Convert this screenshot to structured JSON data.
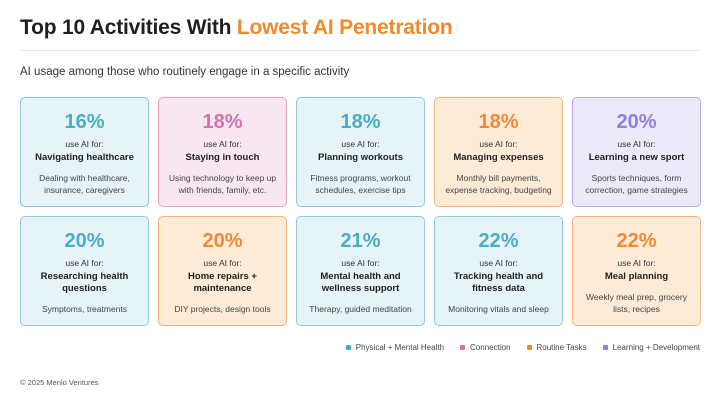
{
  "title": {
    "prefix": "Top 10 Activities With ",
    "highlight": "Lowest AI Penetration"
  },
  "subtitle": "AI usage among those who routinely engage in a specific activity",
  "colors": {
    "Physical + Mental Health": "#49aec4",
    "Connection": "#d174ad",
    "Routine Tasks": "#ee8a35",
    "Learning + Development": "#8f80d8",
    "title_highlight": "#ef8a2d"
  },
  "chart_data": {
    "type": "table",
    "title": "Top 10 Activities With Lowest AI Penetration",
    "subtitle": "AI usage among those who routinely engage in a specific activity",
    "series": [
      {
        "name": "Physical + Mental Health"
      },
      {
        "name": "Connection"
      },
      {
        "name": "Routine Tasks"
      },
      {
        "name": "Learning + Development"
      }
    ],
    "cards": [
      {
        "value": "16%",
        "use_label": "use AI for:",
        "activity": "Navigating healthcare",
        "description": "Dealing with healthcare, insurance, caregivers",
        "category": "Physical + Mental Health"
      },
      {
        "value": "18%",
        "use_label": "use AI for:",
        "activity": "Staying in touch",
        "description": "Using technology to keep up with friends, family, etc.",
        "category": "Connection"
      },
      {
        "value": "18%",
        "use_label": "use AI for:",
        "activity": "Planning workouts",
        "description": "Fitness programs, workout schedules, exercise tips",
        "category": "Physical + Mental Health"
      },
      {
        "value": "18%",
        "use_label": "use AI for:",
        "activity": "Managing expenses",
        "description": "Monthly bill payments, expense tracking, budgeting",
        "category": "Routine Tasks"
      },
      {
        "value": "20%",
        "use_label": "use AI for:",
        "activity": "Learning a new sport",
        "description": "Sports techniques, form correction, game strategies",
        "category": "Learning + Development"
      },
      {
        "value": "20%",
        "use_label": "use AI for:",
        "activity": "Researching health questions",
        "description": "Symptoms, treatments",
        "category": "Physical + Mental Health"
      },
      {
        "value": "20%",
        "use_label": "use AI for:",
        "activity": "Home repairs + maintenance",
        "description": "DIY projects, design tools",
        "category": "Routine Tasks"
      },
      {
        "value": "21%",
        "use_label": "use AI for:",
        "activity": "Mental health and wellness support",
        "description": "Therapy, guided meditation",
        "category": "Physical + Mental Health"
      },
      {
        "value": "22%",
        "use_label": "use AI for:",
        "activity": "Tracking health and fitness data",
        "description": "Monitoring vitals and sleep",
        "category": "Physical + Mental Health"
      },
      {
        "value": "22%",
        "use_label": "use AI for:",
        "activity": "Meal planning",
        "description": "Weekly meal prep, grocery lists, recipes",
        "category": "Routine Tasks"
      }
    ]
  },
  "legend": [
    "Physical + Mental Health",
    "Connection",
    "Routine Tasks",
    "Learning + Development"
  ],
  "footer": "© 2025 Menlo Ventures"
}
